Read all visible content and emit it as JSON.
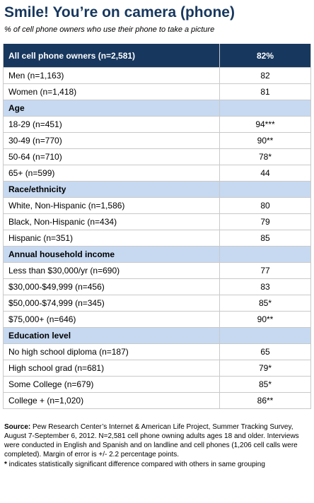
{
  "title": "Smile!  You’re on camera (phone)",
  "subtitle": "% of cell phone owners who use their phone to take a picture",
  "table": {
    "header": [
      "All cell phone owners (n=2,581)",
      "82%"
    ],
    "rows": [
      {
        "label": "Men (n=1,163)",
        "value": "82"
      },
      {
        "label": "Women (n=1,418)",
        "value": "81"
      },
      {
        "heading": "Age"
      },
      {
        "label": "18-29 (n=451)",
        "value": "94***"
      },
      {
        "label": "30-49 (n=770)",
        "value": "90**"
      },
      {
        "label": "50-64 (n=710)",
        "value": "78*"
      },
      {
        "label": "65+ (n=599)",
        "value": "44"
      },
      {
        "heading": "Race/ethnicity"
      },
      {
        "label": "White, Non-Hispanic (n=1,586)",
        "value": "80"
      },
      {
        "label": "Black, Non-Hispanic (n=434)",
        "value": "79"
      },
      {
        "label": "Hispanic (n=351)",
        "value": "85"
      },
      {
        "heading": "Annual household income"
      },
      {
        "label": "Less than $30,000/yr (n=690)",
        "value": "77"
      },
      {
        "label": "$30,000-$49,999 (n=456)",
        "value": "83"
      },
      {
        "label": "$50,000-$74,999 (n=345)",
        "value": "85*"
      },
      {
        "label": "$75,000+ (n=646)",
        "value": "90**"
      },
      {
        "heading": "Education level"
      },
      {
        "label": "No high school diploma (n=187)",
        "value": "65"
      },
      {
        "label": "High school grad (n=681)",
        "value": "79*"
      },
      {
        "label": "Some College (n=679)",
        "value": "85*"
      },
      {
        "label": "College + (n=1,020)",
        "value": "86**"
      }
    ]
  },
  "source": {
    "label": "Source:",
    "text": " Pew Research Center’s Internet & American Life Project, Summer Tracking Survey, August 7-September 6, 2012. N=2,581 cell phone owning adults ages 18 and older. Interviews were conducted in English and Spanish and on landline and cell phones (1,206 cell calls were completed). Margin of error is +/- 2.2 percentage points."
  },
  "footnote": {
    "marker": "*",
    "text": " indicates statistically significant difference compared with others in same grouping"
  }
}
